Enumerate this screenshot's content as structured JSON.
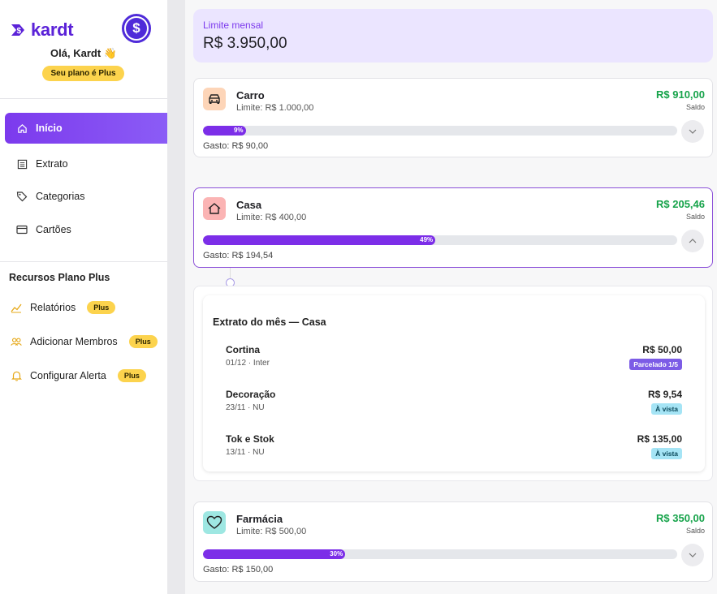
{
  "brand": {
    "name": "kardt",
    "color": "#5b22d8"
  },
  "sidebar": {
    "greeting": "Olá, Kardt 👋",
    "plan_badge": "Seu plano é Plus",
    "nav": [
      {
        "label": "Início",
        "icon": "home-icon",
        "active": true
      },
      {
        "label": "Extrato",
        "icon": "list-icon"
      },
      {
        "label": "Categorias",
        "icon": "tag-icon"
      },
      {
        "label": "Cartões",
        "icon": "card-icon"
      }
    ],
    "plus_section_title": "Recursos Plano Plus",
    "plus_items": [
      {
        "label": "Relatórios",
        "badge": "Plus",
        "icon": "chart-line-icon"
      },
      {
        "label": "Adicionar Membros",
        "badge": "Plus",
        "icon": "users-icon"
      },
      {
        "label": "Configurar Alerta",
        "badge": "Plus",
        "icon": "bell-icon"
      }
    ]
  },
  "limit": {
    "label": "Limite mensal",
    "value": "R$ 3.950,00"
  },
  "categories": [
    {
      "name": "Carro",
      "limit": "Limite: R$ 1.000,00",
      "balance": "R$ 910,00",
      "balance_label": "Saldo",
      "spent_pct": 9,
      "pct_label": "9%",
      "spent": "Gasto: R$ 90,00",
      "icon": "car-icon",
      "icon_bg": "#fdd5b8",
      "expanded": false
    },
    {
      "name": "Casa",
      "limit": "Limite: R$ 400,00",
      "balance": "R$ 205,46",
      "balance_label": "Saldo",
      "spent_pct": 49,
      "pct_label": "49%",
      "spent": "Gasto: R$ 194,54",
      "icon": "house-icon",
      "icon_bg": "#fbb4b4",
      "expanded": true
    },
    {
      "name": "Farmácia",
      "limit": "Limite: R$ 500,00",
      "balance": "R$ 350,00",
      "balance_label": "Saldo",
      "spent_pct": 30,
      "pct_label": "30%",
      "spent": "Gasto: R$ 150,00",
      "icon": "heart-icon",
      "icon_bg": "#9ee7e2",
      "expanded": false
    }
  ],
  "statement": {
    "title": "Extrato do mês — Casa",
    "transactions": [
      {
        "name": "Cortina",
        "meta": "01/12 · Inter",
        "amount": "R$ 50,00",
        "tag": "Parcelado 1/5",
        "tag_type": "parcel"
      },
      {
        "name": "Decoração",
        "meta": "23/11 · NU",
        "amount": "R$ 9,54",
        "tag": "À vista",
        "tag_type": "avista"
      },
      {
        "name": "Tok e Stok",
        "meta": "13/11 · NU",
        "amount": "R$ 135,00",
        "tag": "À vista",
        "tag_type": "avista"
      }
    ]
  },
  "colors": {
    "accent": "#7c3aed",
    "positive": "#16a34a",
    "badge": "#fcd34d"
  }
}
